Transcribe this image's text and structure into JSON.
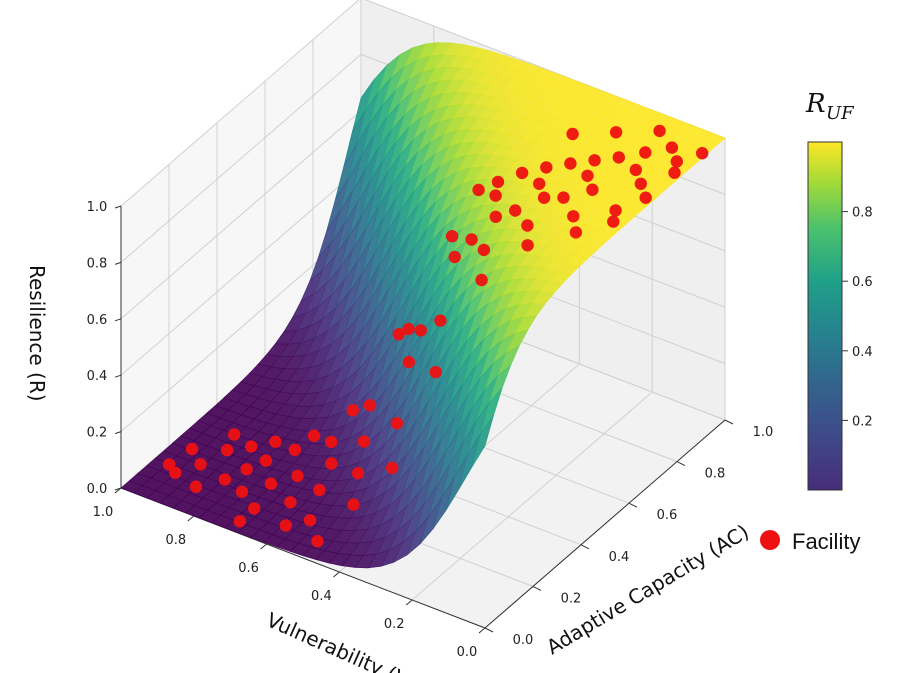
{
  "chart_data": {
    "type": "scatter",
    "subtype": "3d-surface-with-scatter",
    "surface": "logistic sigmoid of adaptive capacity minus vulnerability",
    "colormap": "viridis",
    "axes": {
      "x": {
        "label": "Vulnerability (V)",
        "lim": [
          0,
          1
        ],
        "ticks": [
          "0.0",
          "0.2",
          "0.4",
          "0.6",
          "0.8",
          "1.0"
        ]
      },
      "y": {
        "label": "Adaptive Capacity (AC)",
        "lim": [
          0,
          1
        ],
        "ticks": [
          "0.0",
          "0.2",
          "0.4",
          "0.6",
          "0.8",
          "1.0"
        ]
      },
      "z": {
        "label": "Resilience (R)",
        "lim": [
          0,
          1
        ],
        "ticks": [
          "0.0",
          "0.2",
          "0.4",
          "0.6",
          "0.8",
          "1.0"
        ]
      }
    },
    "colorbar": {
      "title_main": "R",
      "title_sub": "UF",
      "ticks": [
        "0.2",
        "0.4",
        "0.6",
        "0.8"
      ],
      "range": [
        0,
        1
      ]
    },
    "legend": {
      "position": "right",
      "entries": [
        {
          "label": "Facility",
          "color": "#ee1111"
        }
      ]
    },
    "grid": true,
    "series": [
      {
        "name": "Facility",
        "color": "#ee1111",
        "points": [
          {
            "v": 0.93,
            "ac": 0.12
          },
          {
            "v": 0.9,
            "ac": 0.18
          },
          {
            "v": 0.95,
            "ac": 0.22
          },
          {
            "v": 0.86,
            "ac": 0.1
          },
          {
            "v": 0.82,
            "ac": 0.16
          },
          {
            "v": 0.88,
            "ac": 0.26
          },
          {
            "v": 0.8,
            "ac": 0.22
          },
          {
            "v": 0.84,
            "ac": 0.3
          },
          {
            "v": 0.76,
            "ac": 0.14
          },
          {
            "v": 0.78,
            "ac": 0.27
          },
          {
            "v": 0.72,
            "ac": 0.2
          },
          {
            "v": 0.74,
            "ac": 0.33
          },
          {
            "v": 0.7,
            "ac": 0.1
          },
          {
            "v": 0.68,
            "ac": 0.25
          },
          {
            "v": 0.66,
            "ac": 0.36
          },
          {
            "v": 0.64,
            "ac": 0.16
          },
          {
            "v": 0.62,
            "ac": 0.3
          },
          {
            "v": 0.6,
            "ac": 0.22
          },
          {
            "v": 0.58,
            "ac": 0.4
          },
          {
            "v": 0.56,
            "ac": 0.12
          },
          {
            "v": 0.55,
            "ac": 0.33
          },
          {
            "v": 0.52,
            "ac": 0.26
          },
          {
            "v": 0.5,
            "ac": 0.44
          },
          {
            "v": 0.48,
            "ac": 0.18
          },
          {
            "v": 0.46,
            "ac": 0.38
          },
          {
            "v": 0.44,
            "ac": 0.3
          },
          {
            "v": 0.42,
            "ac": 0.5
          },
          {
            "v": 0.4,
            "ac": 0.22
          },
          {
            "v": 0.38,
            "ac": 0.45
          },
          {
            "v": 0.36,
            "ac": 0.36
          },
          {
            "v": 0.34,
            "ac": 0.56
          },
          {
            "v": 0.32,
            "ac": 0.28
          },
          {
            "v": 0.3,
            "ac": 0.5
          },
          {
            "v": 0.28,
            "ac": 0.42
          },
          {
            "v": 0.26,
            "ac": 0.62
          },
          {
            "v": 0.24,
            "ac": 0.35
          },
          {
            "v": 0.22,
            "ac": 0.58
          },
          {
            "v": 0.2,
            "ac": 0.48
          },
          {
            "v": 0.18,
            "ac": 0.7
          },
          {
            "v": 0.16,
            "ac": 0.42
          },
          {
            "v": 0.14,
            "ac": 0.66
          },
          {
            "v": 0.12,
            "ac": 0.55
          },
          {
            "v": 0.1,
            "ac": 0.78
          },
          {
            "v": 0.08,
            "ac": 0.5
          },
          {
            "v": 0.06,
            "ac": 0.74
          },
          {
            "v": 0.05,
            "ac": 0.62
          },
          {
            "v": 0.04,
            "ac": 0.86
          },
          {
            "v": 0.03,
            "ac": 0.58
          },
          {
            "v": 0.02,
            "ac": 0.82
          },
          {
            "v": 0.02,
            "ac": 0.7
          },
          {
            "v": 0.01,
            "ac": 0.92
          },
          {
            "v": 0.12,
            "ac": 0.85
          },
          {
            "v": 0.16,
            "ac": 0.8
          },
          {
            "v": 0.2,
            "ac": 0.76
          },
          {
            "v": 0.24,
            "ac": 0.72
          },
          {
            "v": 0.28,
            "ac": 0.68
          },
          {
            "v": 0.32,
            "ac": 0.64
          },
          {
            "v": 0.36,
            "ac": 0.6
          },
          {
            "v": 0.4,
            "ac": 0.58
          },
          {
            "v": 0.08,
            "ac": 0.9
          },
          {
            "v": 0.14,
            "ac": 0.94
          },
          {
            "v": 0.22,
            "ac": 0.88
          },
          {
            "v": 0.3,
            "ac": 0.82
          },
          {
            "v": 0.18,
            "ac": 0.6
          },
          {
            "v": 0.26,
            "ac": 0.52
          },
          {
            "v": 0.34,
            "ac": 0.46
          },
          {
            "v": 0.44,
            "ac": 0.4
          },
          {
            "v": 0.54,
            "ac": 0.46
          },
          {
            "v": 0.64,
            "ac": 0.42
          },
          {
            "v": 0.72,
            "ac": 0.38
          },
          {
            "v": 0.8,
            "ac": 0.34
          },
          {
            "v": 0.9,
            "ac": 0.32
          },
          {
            "v": 0.96,
            "ac": 0.14
          },
          {
            "v": 0.6,
            "ac": 0.08
          },
          {
            "v": 0.5,
            "ac": 0.06
          },
          {
            "v": 0.7,
            "ac": 0.04
          }
        ]
      }
    ]
  }
}
